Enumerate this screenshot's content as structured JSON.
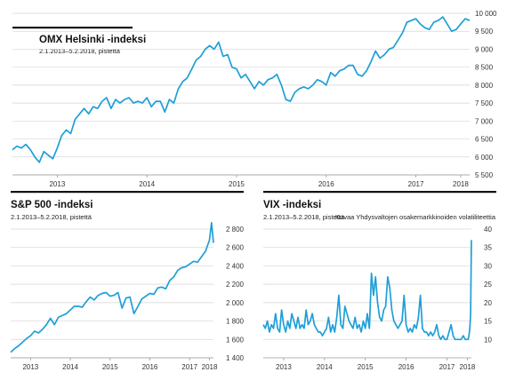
{
  "chart_data": [
    {
      "type": "line",
      "title": "OMX Helsinki -indeksi",
      "subtitle": "2.1.2013–5.2.2018, pistettä",
      "xlabel": "",
      "ylabel": "",
      "xlim": [
        2013.0,
        2018.1
      ],
      "ylim": [
        5500,
        10000
      ],
      "yticks": [
        5500,
        6000,
        6500,
        7000,
        7500,
        8000,
        8500,
        9000,
        9500,
        10000
      ],
      "ytick_labels": [
        "5 500",
        "6 000",
        "6 500",
        "7 000",
        "7 500",
        "8 000",
        "8 500",
        "9 000",
        "9 500",
        "10 000"
      ],
      "xticks": [
        2013.5,
        2014.5,
        2015.5,
        2016.5,
        2017.5,
        2018.0
      ],
      "xtick_labels": [
        "2013",
        "2014",
        "2015",
        "2016",
        "2017",
        "2018"
      ],
      "grid": true,
      "series": [
        {
          "x": [
            2013.0,
            2013.05,
            2013.1,
            2013.15,
            2013.2,
            2013.25,
            2013.3,
            2013.35,
            2013.4,
            2013.45,
            2013.5,
            2013.55,
            2013.6,
            2013.65,
            2013.7,
            2013.75,
            2013.8,
            2013.85,
            2013.9,
            2013.95,
            2014.0,
            2014.05,
            2014.1,
            2014.15,
            2014.2,
            2014.25,
            2014.3,
            2014.35,
            2014.4,
            2014.45,
            2014.5,
            2014.55,
            2014.6,
            2014.65,
            2014.7,
            2014.75,
            2014.8,
            2014.85,
            2014.9,
            2014.95,
            2015.0,
            2015.05,
            2015.1,
            2015.15,
            2015.2,
            2015.25,
            2015.3,
            2015.35,
            2015.4,
            2015.45,
            2015.5,
            2015.55,
            2015.6,
            2015.65,
            2015.7,
            2015.75,
            2015.8,
            2015.85,
            2015.9,
            2015.95,
            2016.0,
            2016.05,
            2016.1,
            2016.15,
            2016.2,
            2016.25,
            2016.3,
            2016.35,
            2016.4,
            2016.45,
            2016.5,
            2016.55,
            2016.6,
            2016.65,
            2016.7,
            2016.75,
            2016.8,
            2016.85,
            2016.9,
            2016.95,
            2017.0,
            2017.05,
            2017.1,
            2017.15,
            2017.2,
            2017.25,
            2017.3,
            2017.35,
            2017.4,
            2017.45,
            2017.5,
            2017.55,
            2017.6,
            2017.65,
            2017.7,
            2017.75,
            2017.8,
            2017.85,
            2017.9,
            2017.95,
            2018.0,
            2018.05,
            2018.1
          ],
          "values": [
            6200,
            6300,
            6250,
            6350,
            6200,
            6000,
            5850,
            6150,
            6050,
            5950,
            6250,
            6600,
            6750,
            6650,
            7050,
            7200,
            7350,
            7200,
            7400,
            7350,
            7550,
            7650,
            7350,
            7600,
            7500,
            7600,
            7650,
            7500,
            7550,
            7500,
            7650,
            7400,
            7550,
            7550,
            7250,
            7600,
            7500,
            7900,
            8100,
            8200,
            8450,
            8700,
            8800,
            9000,
            9100,
            9000,
            9200,
            8800,
            8850,
            8500,
            8450,
            8200,
            8300,
            8100,
            7900,
            8100,
            8000,
            8150,
            8200,
            8300,
            8000,
            7600,
            7550,
            7800,
            7900,
            7950,
            7900,
            8000,
            8150,
            8100,
            8000,
            8350,
            8250,
            8400,
            8450,
            8550,
            8550,
            8300,
            8250,
            8400,
            8650,
            8950,
            8750,
            8850,
            9000,
            9050,
            9250,
            9450,
            9750,
            9800,
            9850,
            9700,
            9600,
            9550,
            9750,
            9800,
            9900,
            9700,
            9500,
            9550,
            9700,
            9850,
            9800
          ]
        }
      ]
    },
    {
      "type": "line",
      "title": "S&P 500 -indeksi",
      "subtitle": "2.1.2013–5.2.2018, pistettä",
      "xlabel": "",
      "ylabel": "",
      "xlim": [
        2013.0,
        2018.1
      ],
      "ylim": [
        1400,
        2800
      ],
      "yticks": [
        1400,
        1600,
        1800,
        2000,
        2200,
        2400,
        2600,
        2800
      ],
      "ytick_labels": [
        "1 400",
        "1 600",
        "1 800",
        "2 000",
        "2 200",
        "2 400",
        "2 600",
        "2 800"
      ],
      "xticks": [
        2013.5,
        2014.5,
        2015.5,
        2016.5,
        2017.5,
        2018.0
      ],
      "xtick_labels": [
        "2013",
        "2014",
        "2015",
        "2016",
        "2017",
        "2018"
      ],
      "grid": true,
      "series": [
        {
          "x": [
            2013.0,
            2013.1,
            2013.2,
            2013.3,
            2013.4,
            2013.5,
            2013.6,
            2013.7,
            2013.8,
            2013.9,
            2014.0,
            2014.1,
            2014.2,
            2014.3,
            2014.4,
            2014.5,
            2014.6,
            2014.7,
            2014.8,
            2014.9,
            2015.0,
            2015.1,
            2015.2,
            2015.3,
            2015.4,
            2015.5,
            2015.6,
            2015.7,
            2015.8,
            2015.9,
            2016.0,
            2016.1,
            2016.2,
            2016.3,
            2016.4,
            2016.5,
            2016.6,
            2016.7,
            2016.8,
            2016.9,
            2017.0,
            2017.1,
            2017.2,
            2017.3,
            2017.4,
            2017.5,
            2017.6,
            2017.7,
            2017.8,
            2017.9,
            2018.0,
            2018.05,
            2018.1
          ],
          "values": [
            1460,
            1500,
            1530,
            1570,
            1610,
            1640,
            1690,
            1670,
            1710,
            1760,
            1830,
            1760,
            1840,
            1860,
            1880,
            1920,
            1960,
            1960,
            1950,
            2010,
            2060,
            2030,
            2080,
            2100,
            2110,
            2070,
            2080,
            2110,
            1940,
            2050,
            2060,
            1880,
            1960,
            2040,
            2070,
            2100,
            2090,
            2160,
            2170,
            2150,
            2240,
            2280,
            2350,
            2380,
            2390,
            2420,
            2450,
            2440,
            2500,
            2560,
            2680,
            2870,
            2650
          ]
        }
      ]
    },
    {
      "type": "line",
      "title": "VIX -indeksi",
      "subtitle": "2.1.2013–5.2.2018, pistettä",
      "annotation": "Kuvaa Yhdysvaltojen osakemarkkinoiden volatiliteettia",
      "xlabel": "",
      "ylabel": "",
      "xlim": [
        2013.0,
        2018.1
      ],
      "ylim": [
        5,
        40
      ],
      "yticks": [
        10,
        15,
        20,
        25,
        30,
        35,
        40
      ],
      "ytick_labels": [
        "10",
        "15",
        "20",
        "25",
        "30",
        "35",
        "40"
      ],
      "xticks": [
        2013.5,
        2014.5,
        2015.5,
        2016.5,
        2017.5,
        2018.0
      ],
      "xtick_labels": [
        "2013",
        "2014",
        "2015",
        "2016",
        "2017",
        "2018"
      ],
      "grid": true,
      "series": [
        {
          "x": [
            2013.0,
            2013.05,
            2013.1,
            2013.15,
            2013.2,
            2013.25,
            2013.3,
            2013.35,
            2013.4,
            2013.45,
            2013.5,
            2013.55,
            2013.6,
            2013.65,
            2013.7,
            2013.75,
            2013.8,
            2013.85,
            2013.9,
            2013.95,
            2014.0,
            2014.05,
            2014.1,
            2014.15,
            2014.2,
            2014.25,
            2014.3,
            2014.35,
            2014.4,
            2014.45,
            2014.5,
            2014.55,
            2014.6,
            2014.65,
            2014.7,
            2014.75,
            2014.8,
            2014.85,
            2014.9,
            2014.95,
            2015.0,
            2015.05,
            2015.1,
            2015.15,
            2015.2,
            2015.25,
            2015.3,
            2015.35,
            2015.4,
            2015.45,
            2015.5,
            2015.55,
            2015.6,
            2015.65,
            2015.7,
            2015.75,
            2015.8,
            2015.85,
            2015.9,
            2015.95,
            2016.0,
            2016.05,
            2016.1,
            2016.15,
            2016.2,
            2016.25,
            2016.3,
            2016.35,
            2016.4,
            2016.45,
            2016.5,
            2016.55,
            2016.6,
            2016.65,
            2016.7,
            2016.75,
            2016.8,
            2016.85,
            2016.9,
            2016.95,
            2017.0,
            2017.05,
            2017.1,
            2017.15,
            2017.2,
            2017.25,
            2017.3,
            2017.35,
            2017.4,
            2017.45,
            2017.5,
            2017.55,
            2017.6,
            2017.65,
            2017.7,
            2017.75,
            2017.8,
            2017.85,
            2017.9,
            2017.95,
            2018.0,
            2018.02,
            2018.04,
            2018.06,
            2018.08,
            2018.1
          ],
          "values": [
            14,
            13,
            15,
            12,
            14,
            13,
            17,
            13,
            12,
            18,
            14,
            12,
            15,
            13,
            17,
            15,
            13,
            16,
            13,
            14,
            13,
            18,
            14,
            15,
            17,
            14,
            13,
            12,
            12,
            11,
            12,
            13,
            16,
            12,
            14,
            12,
            16,
            22,
            14,
            13,
            19,
            17,
            15,
            14,
            13,
            16,
            13,
            14,
            12,
            15,
            13,
            17,
            13,
            28,
            22,
            27,
            20,
            16,
            15,
            18,
            19,
            27,
            24,
            18,
            15,
            14,
            13,
            14,
            15,
            22,
            14,
            12,
            13,
            12,
            14,
            13,
            16,
            22,
            13,
            12,
            12,
            11,
            12,
            11,
            12,
            14,
            11,
            10,
            11,
            10,
            10,
            12,
            14,
            11,
            10,
            10,
            10,
            10,
            11,
            10,
            10,
            10,
            11,
            13,
            17,
            37
          ]
        }
      ]
    }
  ]
}
